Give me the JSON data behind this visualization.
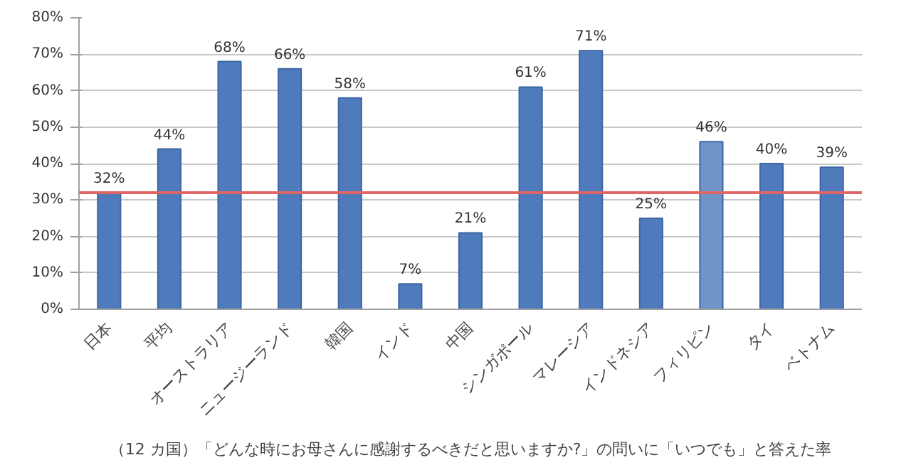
{
  "chart_data": {
    "type": "bar",
    "categories": [
      "日本",
      "平均",
      "オーストラリア",
      "ニュージーランド",
      "韓国",
      "インド",
      "中国",
      "シンガポール",
      "マレーシア",
      "インドネシア",
      "フィリピン",
      "タイ",
      "ベトナム"
    ],
    "values": [
      32,
      44,
      68,
      66,
      58,
      7,
      21,
      61,
      71,
      25,
      46,
      40,
      39
    ],
    "colors": [
      "#4f7bbd",
      "#4f7bbd",
      "#4f7bbd",
      "#4f7bbd",
      "#4f7bbd",
      "#4f7bbd",
      "#4f7bbd",
      "#4f7bbd",
      "#4f7bbd",
      "#4f7bbd",
      "#7094c8",
      "#4f7bbd",
      "#4f7bbd"
    ],
    "value_labels": [
      "32%",
      "44%",
      "68%",
      "66%",
      "58%",
      "7%",
      "21%",
      "61%",
      "71%",
      "25%",
      "46%",
      "40%",
      "39%"
    ],
    "ylim": [
      0,
      80
    ],
    "yticks": [
      {
        "value": 0,
        "label": "0%"
      },
      {
        "value": 10,
        "label": "10%"
      },
      {
        "value": 20,
        "label": "20%"
      },
      {
        "value": 30,
        "label": "30%"
      },
      {
        "value": 40,
        "label": "40%"
      },
      {
        "value": 50,
        "label": "50%"
      },
      {
        "value": 60,
        "label": "60%"
      },
      {
        "value": 70,
        "label": "70%"
      },
      {
        "value": 80,
        "label": "80%"
      }
    ],
    "grid": "y",
    "ref_lines": [
      {
        "axis": "y",
        "value": 32,
        "color": "#e06666"
      }
    ],
    "annotations": [
      "（12 カ国）「どんな時にお母さんに感謝するべきだと思いますか?」の問いに「いつでも」と答えた率"
    ]
  }
}
